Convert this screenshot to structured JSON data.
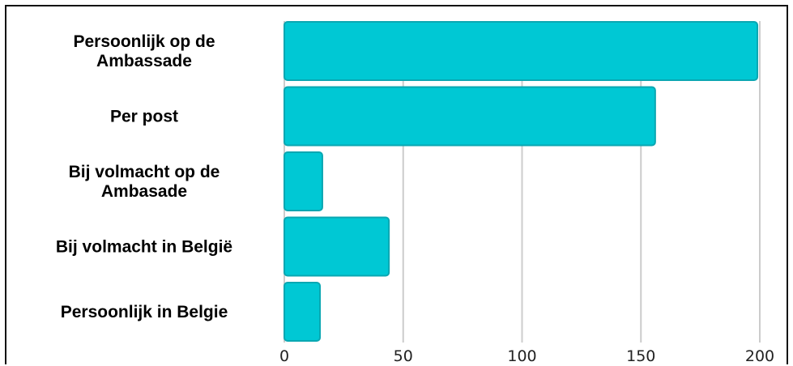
{
  "chart_data": {
    "type": "bar",
    "orientation": "horizontal",
    "categories": [
      [
        "Persoonlijk op de",
        "Ambassade"
      ],
      [
        "Per post"
      ],
      [
        "Bij volmacht op de",
        "Ambasade"
      ],
      [
        "Bij volmacht in België"
      ],
      [
        "Persoonlijk in Belgie"
      ]
    ],
    "values": [
      199,
      156,
      16,
      44,
      15
    ],
    "xlim": [
      0,
      200
    ],
    "xticks": [
      "0",
      "50",
      "100",
      "150",
      "200"
    ],
    "grid": true,
    "bar_color": "#00c8d4",
    "bar_edge_color": "#0aa7b2",
    "grid_color": "#cccccc"
  }
}
